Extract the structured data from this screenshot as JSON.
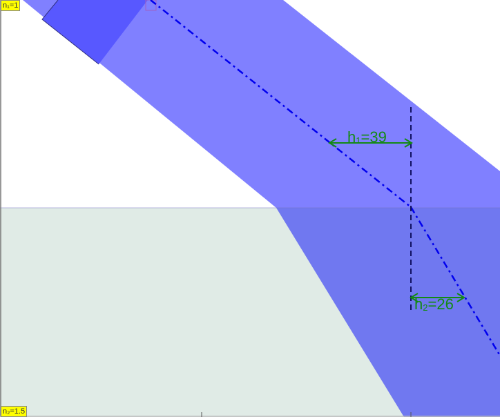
{
  "media": {
    "n1_label": "n₁=1",
    "n2_label": "n₂=1.5"
  },
  "measurements": {
    "h1": {
      "prefix": "h",
      "sub": "1",
      "value": "=39"
    },
    "h2": {
      "prefix": "h",
      "sub": "2",
      "value": "=26"
    }
  },
  "colors": {
    "beam_upper": "#8080ff",
    "beam_lower": "#7078f0",
    "beam_band": "#5858ff",
    "glass": "#e0ebe6",
    "ray": "#0000ee",
    "normal": "#101060",
    "annotation": "#138a13",
    "label_bg": "#ffff00"
  }
}
